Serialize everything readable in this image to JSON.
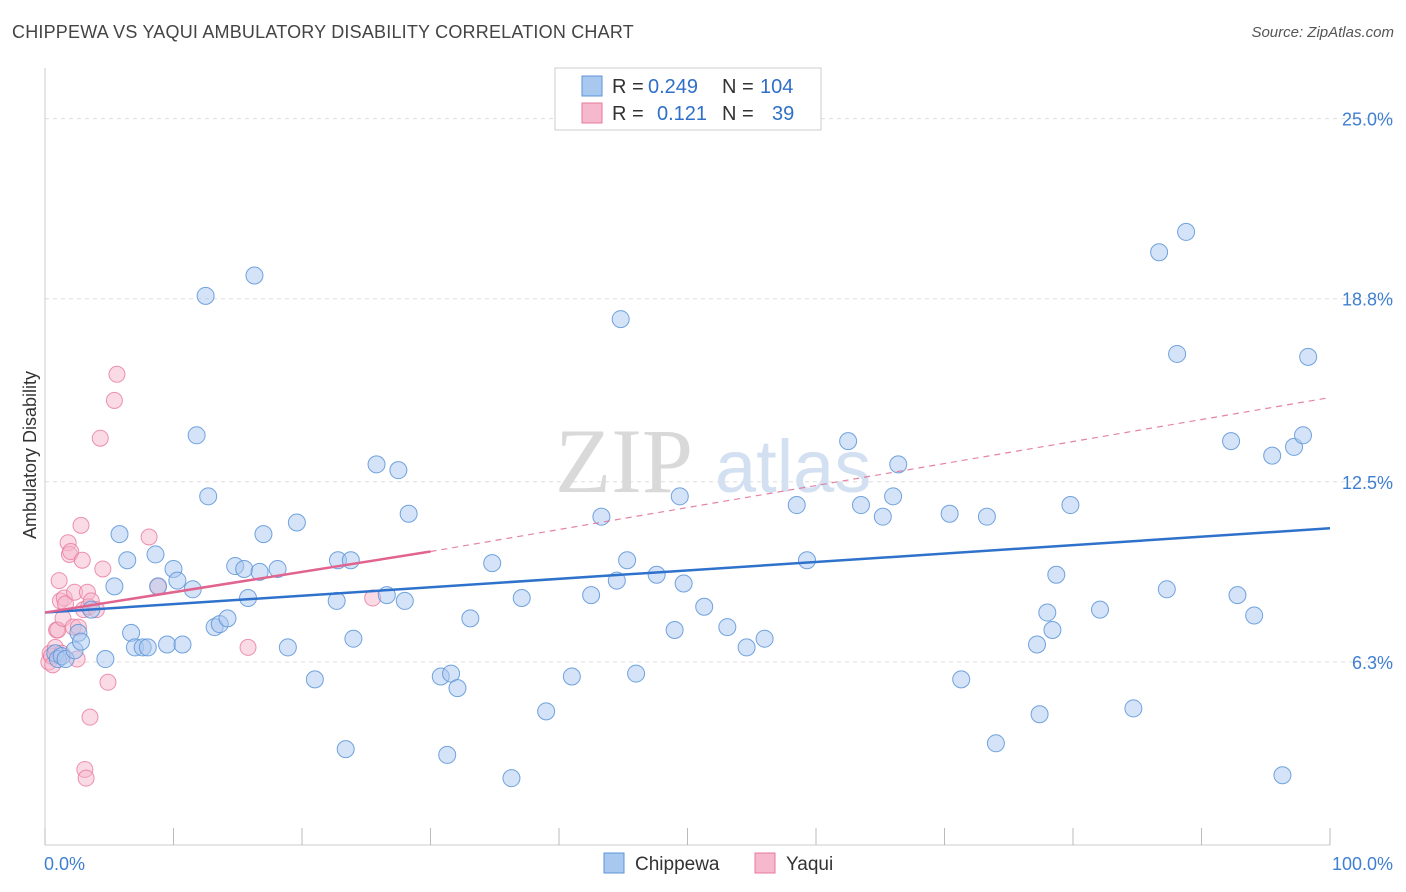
{
  "header": {
    "title": "CHIPPEWA VS YAQUI AMBULATORY DISABILITY CORRELATION CHART",
    "source": "Source: ZipAtlas.com"
  },
  "watermark": {
    "zip": "ZIP",
    "atlas": "atlas"
  },
  "legend": {
    "row1": {
      "r_label": "R =",
      "r_value": "0.249",
      "n_label": "N =",
      "n_value": "104"
    },
    "row2": {
      "r_label": "R =",
      "r_value": "0.121",
      "n_label": "N =",
      "n_value": "39"
    }
  },
  "colors": {
    "chippewa_fill": "#a9c8f0",
    "chippewa_stroke": "#5b94d8",
    "chippewa_line": "#2f72cc",
    "yaqui_fill": "#f6b8cc",
    "yaqui_stroke": "#e8789c",
    "yaqui_line": "#e0648f",
    "axis_text": "#3f7fd1",
    "grid": "#dddddd"
  },
  "chart_data": {
    "type": "scatter",
    "title": "CHIPPEWA VS YAQUI AMBULATORY DISABILITY CORRELATION CHART",
    "xlabel": "",
    "ylabel": "Ambulatory Disability",
    "xlim": [
      0,
      100
    ],
    "ylim": [
      0,
      26.5
    ],
    "x_tick_labels": [
      "0.0%",
      "100.0%"
    ],
    "y_ticks": [
      6.3,
      12.5,
      18.8,
      25.0
    ],
    "y_tick_labels": [
      "6.3%",
      "12.5%",
      "18.8%",
      "25.0%"
    ],
    "grid": true,
    "legend_position": "bottom-center",
    "series": [
      {
        "name": "Chippewa",
        "r": 0.249,
        "n": 104,
        "trend": {
          "x": [
            0,
            100
          ],
          "y": [
            8.0,
            10.9
          ],
          "style": "solid"
        },
        "points": [
          [
            0.8,
            6.6
          ],
          [
            1.0,
            6.4
          ],
          [
            1.3,
            6.5
          ],
          [
            1.6,
            6.4
          ],
          [
            2.3,
            6.7
          ],
          [
            2.6,
            7.3
          ],
          [
            2.8,
            7.0
          ],
          [
            3.6,
            8.1
          ],
          [
            4.7,
            6.4
          ],
          [
            5.4,
            8.9
          ],
          [
            5.8,
            10.7
          ],
          [
            6.4,
            9.8
          ],
          [
            6.7,
            7.3
          ],
          [
            7.0,
            6.8
          ],
          [
            7.6,
            6.8
          ],
          [
            8.0,
            6.8
          ],
          [
            8.6,
            10.0
          ],
          [
            8.8,
            8.9
          ],
          [
            9.5,
            6.9
          ],
          [
            10.0,
            9.5
          ],
          [
            10.3,
            9.1
          ],
          [
            10.7,
            6.9
          ],
          [
            11.5,
            8.8
          ],
          [
            11.8,
            14.1
          ],
          [
            12.5,
            18.9
          ],
          [
            12.7,
            12.0
          ],
          [
            13.2,
            7.5
          ],
          [
            13.6,
            7.6
          ],
          [
            14.2,
            7.8
          ],
          [
            14.8,
            9.6
          ],
          [
            15.5,
            9.5
          ],
          [
            15.8,
            8.5
          ],
          [
            16.3,
            19.6
          ],
          [
            16.7,
            9.4
          ],
          [
            17.0,
            10.7
          ],
          [
            18.1,
            9.5
          ],
          [
            18.9,
            6.8
          ],
          [
            19.6,
            11.1
          ],
          [
            21.0,
            5.7
          ],
          [
            22.7,
            8.4
          ],
          [
            22.8,
            9.8
          ],
          [
            23.4,
            3.3
          ],
          [
            23.8,
            9.8
          ],
          [
            24.0,
            7.1
          ],
          [
            25.8,
            13.1
          ],
          [
            26.6,
            8.6
          ],
          [
            27.5,
            12.9
          ],
          [
            28.0,
            8.4
          ],
          [
            28.3,
            11.4
          ],
          [
            30.8,
            5.8
          ],
          [
            31.3,
            3.1
          ],
          [
            31.6,
            5.9
          ],
          [
            32.1,
            5.4
          ],
          [
            33.1,
            7.8
          ],
          [
            34.8,
            9.7
          ],
          [
            36.3,
            2.3
          ],
          [
            37.1,
            8.5
          ],
          [
            39.0,
            4.6
          ],
          [
            41.0,
            5.8
          ],
          [
            42.5,
            8.6
          ],
          [
            43.3,
            11.3
          ],
          [
            44.5,
            9.1
          ],
          [
            44.8,
            18.1
          ],
          [
            45.3,
            9.8
          ],
          [
            46.0,
            5.9
          ],
          [
            47.6,
            9.3
          ],
          [
            49.0,
            7.4
          ],
          [
            49.4,
            12.0
          ],
          [
            49.7,
            9.0
          ],
          [
            51.3,
            8.2
          ],
          [
            53.1,
            7.5
          ],
          [
            54.6,
            6.8
          ],
          [
            56.0,
            7.1
          ],
          [
            58.5,
            11.7
          ],
          [
            59.3,
            9.8
          ],
          [
            62.5,
            13.9
          ],
          [
            63.5,
            11.7
          ],
          [
            65.2,
            11.3
          ],
          [
            66.0,
            12.0
          ],
          [
            66.4,
            13.1
          ],
          [
            70.4,
            11.4
          ],
          [
            71.3,
            5.7
          ],
          [
            73.3,
            11.3
          ],
          [
            74.0,
            3.5
          ],
          [
            77.2,
            6.9
          ],
          [
            77.4,
            4.5
          ],
          [
            78.0,
            8.0
          ],
          [
            78.4,
            7.4
          ],
          [
            78.7,
            9.3
          ],
          [
            79.8,
            11.7
          ],
          [
            82.1,
            8.1
          ],
          [
            84.7,
            4.7
          ],
          [
            86.7,
            20.4
          ],
          [
            87.3,
            8.8
          ],
          [
            88.1,
            16.9
          ],
          [
            88.8,
            21.1
          ],
          [
            92.3,
            13.9
          ],
          [
            92.8,
            8.6
          ],
          [
            94.1,
            7.9
          ],
          [
            95.5,
            13.4
          ],
          [
            96.3,
            2.4
          ],
          [
            97.2,
            13.7
          ],
          [
            97.9,
            14.1
          ],
          [
            98.3,
            16.8
          ]
        ]
      },
      {
        "name": "Yaqui",
        "r": 0.121,
        "n": 39,
        "trend": {
          "x": [
            0,
            30
          ],
          "y": [
            8.0,
            10.1
          ],
          "style": "solid",
          "extended_to": [
            100,
            15.4
          ],
          "extended_style": "dashed"
        },
        "points": [
          [
            0.3,
            6.3
          ],
          [
            0.4,
            6.6
          ],
          [
            0.5,
            6.5
          ],
          [
            0.6,
            6.2
          ],
          [
            0.8,
            6.8
          ],
          [
            0.9,
            7.4
          ],
          [
            1.0,
            7.4
          ],
          [
            1.1,
            9.1
          ],
          [
            1.2,
            8.4
          ],
          [
            1.3,
            6.6
          ],
          [
            1.4,
            7.8
          ],
          [
            1.5,
            8.5
          ],
          [
            1.6,
            8.3
          ],
          [
            1.8,
            10.4
          ],
          [
            1.9,
            10.0
          ],
          [
            2.0,
            10.1
          ],
          [
            2.2,
            7.5
          ],
          [
            2.3,
            8.7
          ],
          [
            2.5,
            6.4
          ],
          [
            2.6,
            7.5
          ],
          [
            2.8,
            11.0
          ],
          [
            2.9,
            9.8
          ],
          [
            3.0,
            8.1
          ],
          [
            3.1,
            2.6
          ],
          [
            3.2,
            2.3
          ],
          [
            3.3,
            8.7
          ],
          [
            3.4,
            8.2
          ],
          [
            3.5,
            4.4
          ],
          [
            3.6,
            8.4
          ],
          [
            4.0,
            8.1
          ],
          [
            4.3,
            14.0
          ],
          [
            4.5,
            9.5
          ],
          [
            4.9,
            5.6
          ],
          [
            5.4,
            15.3
          ],
          [
            5.6,
            16.2
          ],
          [
            8.1,
            10.6
          ],
          [
            8.8,
            8.9
          ],
          [
            15.8,
            6.8
          ],
          [
            25.5,
            8.5
          ]
        ]
      }
    ]
  },
  "bottom_legend": {
    "chippewa": "Chippewa",
    "yaqui": "Yaqui"
  }
}
